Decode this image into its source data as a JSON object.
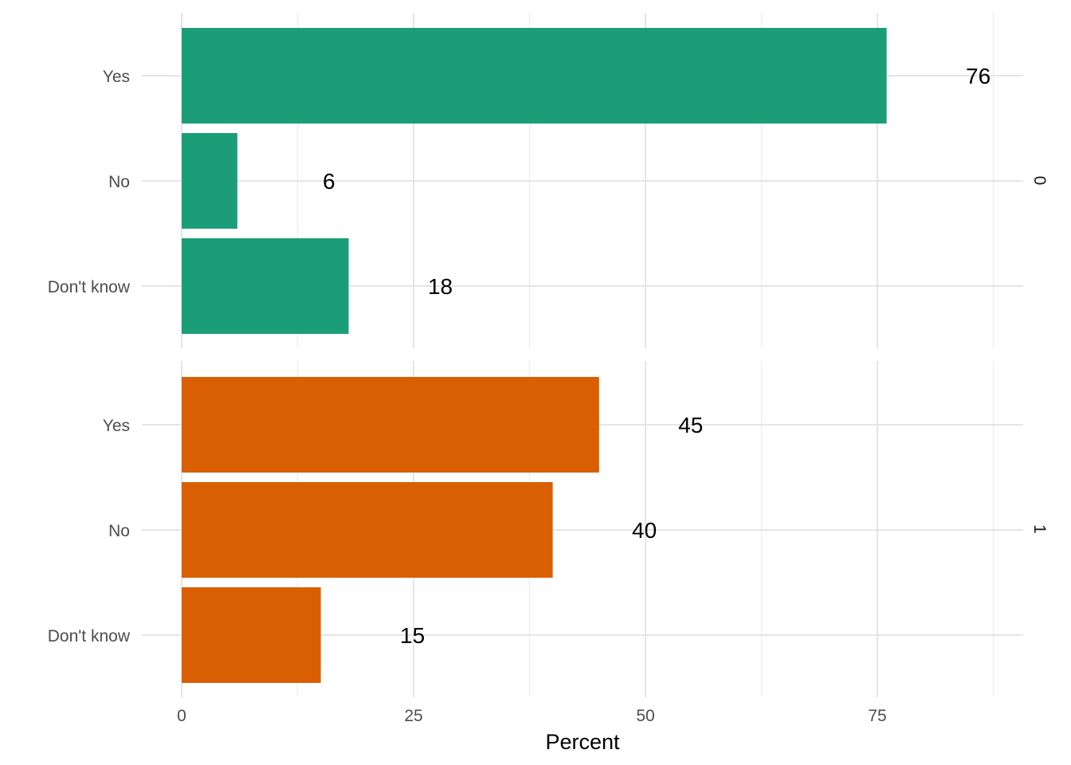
{
  "chart_data": {
    "type": "bar",
    "orientation": "horizontal",
    "facet": "rows",
    "categories": [
      "Yes",
      "No",
      "Don't know"
    ],
    "xlabel": "Percent",
    "ylabel": "",
    "xlim": [
      0,
      90
    ],
    "xticks": [
      0,
      25,
      50,
      75
    ],
    "grid": true,
    "legend": "none",
    "panels": [
      {
        "strip": "0",
        "color": "#1B9E77",
        "values": [
          76,
          6,
          18
        ],
        "labels": [
          "76",
          "6",
          "18"
        ]
      },
      {
        "strip": "1",
        "color": "#D95F02",
        "values": [
          45,
          40,
          15
        ],
        "labels": [
          "45",
          "40",
          "15"
        ]
      }
    ]
  }
}
